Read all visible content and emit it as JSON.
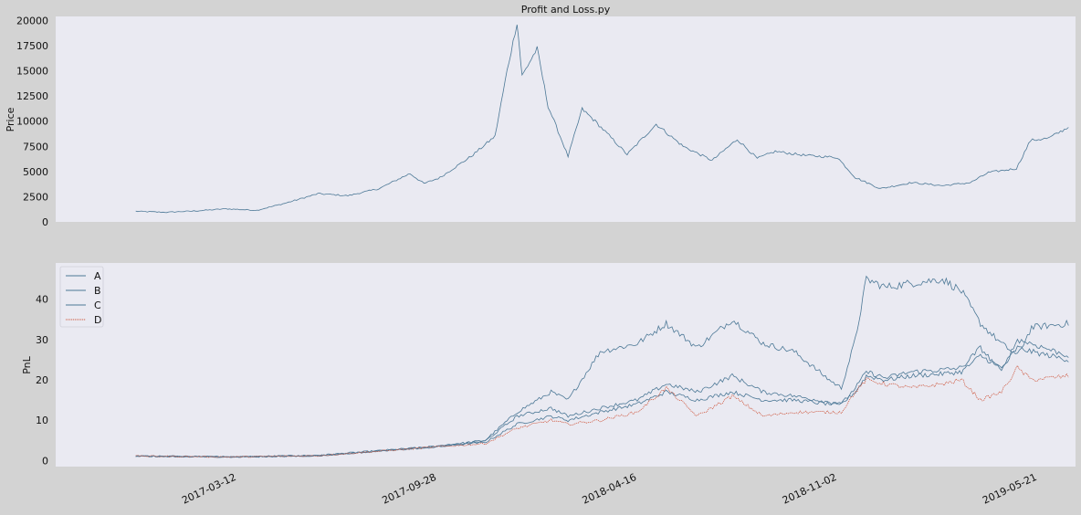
{
  "colors": {
    "figure_bg": "#d3d3d3",
    "axes_bg": "#eaeaf2",
    "blue": "#4c7896",
    "red": "#cf5b43"
  },
  "chart_data": [
    {
      "type": "line",
      "title": "Profit and Loss.py",
      "xlabel": "",
      "ylabel": "Price",
      "xlim": [
        "2016-09-12",
        "2019-06-28"
      ],
      "ylim": [
        0,
        20400
      ],
      "yticks": [
        0,
        2500,
        5000,
        7500,
        10000,
        12500,
        15000,
        17500,
        20000
      ],
      "xtick_labels": [],
      "grid": false,
      "series": [
        {
          "color": "#4c7896",
          "x": [
            "2016-12-01",
            "2017-01-01",
            "2017-02-01",
            "2017-03-01",
            "2017-04-01",
            "2017-05-01",
            "2017-06-01",
            "2017-07-01",
            "2017-08-01",
            "2017-09-01",
            "2017-09-15",
            "2017-10-01",
            "2017-11-01",
            "2017-11-25",
            "2017-12-07",
            "2017-12-17",
            "2017-12-22",
            "2018-01-06",
            "2018-01-17",
            "2018-02-06",
            "2018-02-20",
            "2018-03-05",
            "2018-04-06",
            "2018-05-05",
            "2018-06-01",
            "2018-06-30",
            "2018-07-25",
            "2018-08-14",
            "2018-09-01",
            "2018-10-01",
            "2018-11-02",
            "2018-11-20",
            "2018-12-15",
            "2019-01-15",
            "2019-02-15",
            "2019-03-15",
            "2019-04-02",
            "2019-04-30",
            "2019-05-14",
            "2019-06-01",
            "2019-06-21"
          ],
          "y": [
            1050,
            950,
            1100,
            1300,
            1150,
            1900,
            2800,
            2600,
            3300,
            4800,
            3800,
            4400,
            6500,
            8500,
            15000,
            19800,
            14500,
            17200,
            11500,
            6500,
            11200,
            10000,
            6700,
            9700,
            7500,
            6100,
            8200,
            6300,
            7000,
            6600,
            6400,
            4400,
            3300,
            3900,
            3600,
            3900,
            4900,
            5300,
            8100,
            8300,
            9400
          ]
        }
      ]
    },
    {
      "type": "line",
      "title": "",
      "xlabel": "",
      "ylabel": "PnL",
      "xlim": [
        "2016-09-12",
        "2019-06-28"
      ],
      "ylim": [
        -1.5,
        49
      ],
      "yticks": [
        0,
        10,
        20,
        30,
        40
      ],
      "xtick_labels": [
        "2017-03-12",
        "2017-09-28",
        "2018-04-16",
        "2018-11-02",
        "2019-05-21"
      ],
      "grid": false,
      "legend": "top-left",
      "series": [
        {
          "name": "A",
          "color": "#4c7896",
          "style": "solid",
          "x": [
            "2016-12-01",
            "2017-03-12",
            "2017-06-01",
            "2017-09-28",
            "2017-11-15",
            "2017-12-17",
            "2018-01-20",
            "2018-02-06",
            "2018-03-10",
            "2018-04-16",
            "2018-05-15",
            "2018-06-15",
            "2018-07-20",
            "2018-08-20",
            "2018-09-20",
            "2018-10-25",
            "2018-11-06",
            "2018-11-20",
            "2018-12-01",
            "2018-12-20",
            "2019-01-15",
            "2019-02-15",
            "2019-03-06",
            "2019-03-25",
            "2019-04-15",
            "2019-05-01",
            "2019-05-15",
            "2019-06-21"
          ],
          "y": [
            1.1,
            0.9,
            1.3,
            3.5,
            5.0,
            12.0,
            17.0,
            15.0,
            27.0,
            29.0,
            34.0,
            28.0,
            35.0,
            29.0,
            27.0,
            20.0,
            18.0,
            30.0,
            45.0,
            43.0,
            44.0,
            45.0,
            42.0,
            34.0,
            29.0,
            26.0,
            33.0,
            34.0
          ]
        },
        {
          "name": "B",
          "color": "#4c7896",
          "style": "solid",
          "x": [
            "2016-12-01",
            "2017-03-12",
            "2017-06-01",
            "2017-09-28",
            "2017-11-15",
            "2017-12-17",
            "2018-01-20",
            "2018-02-06",
            "2018-03-10",
            "2018-04-16",
            "2018-05-15",
            "2018-06-15",
            "2018-07-20",
            "2018-08-20",
            "2018-09-20",
            "2018-10-25",
            "2018-11-06",
            "2018-11-20",
            "2018-12-01",
            "2018-12-20",
            "2019-01-15",
            "2019-02-15",
            "2019-03-06",
            "2019-03-25",
            "2019-04-15",
            "2019-05-01",
            "2019-05-15",
            "2019-06-21"
          ],
          "y": [
            1.1,
            0.9,
            1.2,
            3.4,
            4.5,
            9.0,
            11.0,
            10.0,
            12.0,
            14.0,
            17.0,
            15.0,
            17.0,
            15.0,
            15.0,
            14.0,
            14.0,
            17.0,
            21.0,
            20.0,
            21.0,
            21.5,
            22.0,
            26.0,
            23.0,
            28.0,
            27.0,
            25.0
          ]
        },
        {
          "name": "C",
          "color": "#4c7896",
          "style": "solid",
          "x": [
            "2016-12-01",
            "2017-03-12",
            "2017-06-01",
            "2017-09-28",
            "2017-11-15",
            "2017-12-17",
            "2018-01-20",
            "2018-02-06",
            "2018-03-10",
            "2018-04-16",
            "2018-05-15",
            "2018-06-15",
            "2018-07-20",
            "2018-08-20",
            "2018-09-20",
            "2018-10-25",
            "2018-11-06",
            "2018-11-20",
            "2018-12-01",
            "2018-12-20",
            "2019-01-15",
            "2019-02-15",
            "2019-03-06",
            "2019-03-25",
            "2019-04-15",
            "2019-05-01",
            "2019-05-15",
            "2019-06-21"
          ],
          "y": [
            1.1,
            0.9,
            1.2,
            3.5,
            4.8,
            11.0,
            13.0,
            11.0,
            13.0,
            15.0,
            19.0,
            17.0,
            21.0,
            17.0,
            16.0,
            14.5,
            14.0,
            18.0,
            22.0,
            20.5,
            22.0,
            22.5,
            23.0,
            28.0,
            22.0,
            30.0,
            29.0,
            26.0
          ]
        },
        {
          "name": "D",
          "color": "#cf5b43",
          "style": "dotted",
          "x": [
            "2016-12-01",
            "2017-03-12",
            "2017-06-01",
            "2017-09-28",
            "2017-11-15",
            "2017-12-17",
            "2018-01-20",
            "2018-02-06",
            "2018-03-10",
            "2018-04-16",
            "2018-05-15",
            "2018-06-15",
            "2018-07-20",
            "2018-08-20",
            "2018-09-20",
            "2018-10-25",
            "2018-11-06",
            "2018-11-20",
            "2018-12-01",
            "2018-12-20",
            "2019-01-15",
            "2019-02-15",
            "2019-03-06",
            "2019-03-25",
            "2019-04-15",
            "2019-05-01",
            "2019-05-15",
            "2019-06-21"
          ],
          "y": [
            1.1,
            0.9,
            1.2,
            3.4,
            4.2,
            8.0,
            10.0,
            9.0,
            10.0,
            12.0,
            18.0,
            11.0,
            16.0,
            11.0,
            12.0,
            12.0,
            12.0,
            17.0,
            20.0,
            19.0,
            18.0,
            19.0,
            20.0,
            15.0,
            17.0,
            23.0,
            20.0,
            21.0
          ]
        }
      ]
    }
  ]
}
